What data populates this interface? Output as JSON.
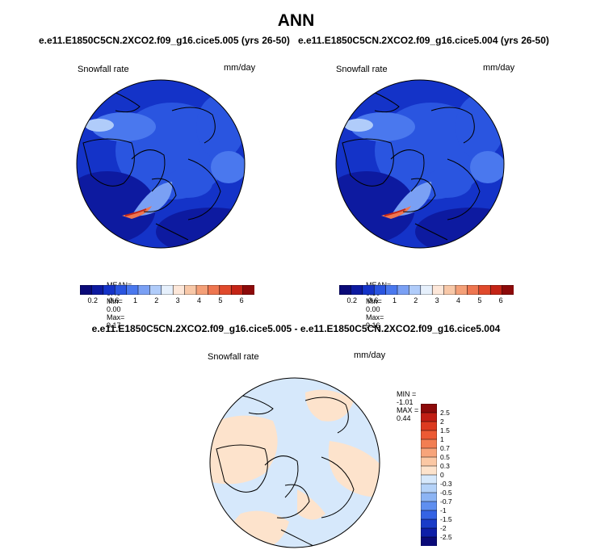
{
  "season": "ANN",
  "panels": [
    {
      "case_title": "e.e11.E1850C5CN.2XCO2.f09_g16.cice5.005 (yrs 26-50)",
      "var_label": "Snowfall rate",
      "units": "mm/day",
      "stats": {
        "mean_label": "MEAN=",
        "mean": "0.49",
        "min_label": "Min=",
        "min": "0.00",
        "max_label": "Max=",
        "max": "9.17"
      }
    },
    {
      "case_title": "e.e11.E1850C5CN.2XCO2.f09_g16.cice5.004 (yrs 26-50)",
      "var_label": "Snowfall rate",
      "units": "mm/day",
      "stats": {
        "mean_label": "MEAN=",
        "mean": "0.50",
        "min_label": "Min=",
        "min": "0.00",
        "max_label": "Max=",
        "max": "9.16"
      }
    }
  ],
  "colorbar": {
    "tick_labels": [
      "0.2",
      "0.6",
      "1",
      "2",
      "3",
      "4",
      "5",
      "6"
    ],
    "colors": [
      "#0a0a78",
      "#0d1aa0",
      "#1433c8",
      "#2a55e0",
      "#4a78ee",
      "#7aa0f4",
      "#b0ccfa",
      "#e6f0fc",
      "#fde7d9",
      "#f8c8a8",
      "#f4a078",
      "#ee7650",
      "#e04a2c",
      "#c42416",
      "#8c0a0a"
    ]
  },
  "difference": {
    "title": "e.e11.E1850C5CN.2XCO2.f09_g16.cice5.005 - e.e11.E1850C5CN.2XCO2.f09_g16.cice5.004",
    "var_label": "Snowfall rate",
    "units": "mm/day",
    "stats": {
      "min_label": "MIN =",
      "min": "-1.01",
      "max_label": "MAX =",
      "max": "0.44"
    },
    "colorbar_labels": [
      "2.5",
      "2",
      "1.5",
      "1",
      "0.7",
      "0.5",
      "0.3",
      "0",
      "-0.3",
      "-0.5",
      "-0.7",
      "-1",
      "-1.5",
      "-2",
      "-2.5"
    ],
    "colorbar_colors": [
      "#8c0a0a",
      "#c01e14",
      "#dc3a20",
      "#ec5a34",
      "#f27e52",
      "#f7a47a",
      "#fbc8a4",
      "#fde3cc",
      "#d6e8fb",
      "#b4d2f8",
      "#8cb4f4",
      "#5f8ff0",
      "#3563e4",
      "#1a3cc8",
      "#0e1fa8",
      "#0a0a78"
    ]
  }
}
